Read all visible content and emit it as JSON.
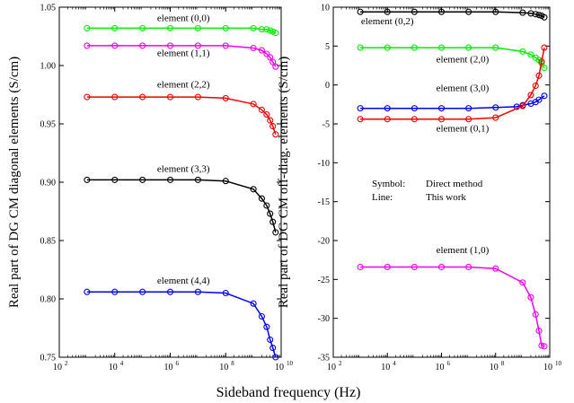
{
  "xlabel": "Sideband frequency (Hz)",
  "chart_data": [
    {
      "type": "line",
      "ylabel": "Real part of DG CM diagonal elements (S/cm)",
      "xlabel": "",
      "xscale": "log",
      "xlim": [
        100,
        10000000000
      ],
      "ylim": [
        0.75,
        1.05
      ],
      "xticks": [
        {
          "v": 100,
          "b": "10",
          "e": "2"
        },
        {
          "v": 10000,
          "b": "10",
          "e": "4"
        },
        {
          "v": 1000000,
          "b": "10",
          "e": "6"
        },
        {
          "v": 100000000,
          "b": "10",
          "e": "8"
        },
        {
          "v": 10000000000,
          "b": "10",
          "e": "10"
        }
      ],
      "yticks": [
        0.75,
        0.8,
        0.85,
        0.9,
        0.95,
        1.0,
        1.05
      ],
      "yticklabels": [
        "0.75",
        "0.80",
        "0.85",
        "0.90",
        "0.95",
        "1.00",
        "1.05"
      ],
      "grid": false,
      "series": [
        {
          "name": "element (0,0)",
          "color": "#00ee00",
          "x": [
            1000,
            10000,
            100000,
            1000000,
            10000000,
            100000000,
            1000000000,
            2000000000,
            3000000000,
            4000000000,
            5000000000,
            6300000000
          ],
          "y": [
            1.032,
            1.032,
            1.032,
            1.032,
            1.032,
            1.032,
            1.032,
            1.031,
            1.031,
            1.03,
            1.029,
            1.028
          ]
        },
        {
          "name": "element (1,1)",
          "color": "#ee00ee",
          "x": [
            1000,
            10000,
            100000,
            1000000,
            10000000,
            100000000,
            1000000000,
            2000000000,
            3000000000,
            4000000000,
            5000000000,
            6300000000
          ],
          "y": [
            1.017,
            1.017,
            1.017,
            1.017,
            1.017,
            1.017,
            1.015,
            1.013,
            1.01,
            1.007,
            1.003,
            0.999
          ]
        },
        {
          "name": "element (2,2)",
          "color": "#ee0000",
          "x": [
            1000,
            10000,
            100000,
            1000000,
            10000000,
            100000000,
            1000000000,
            2000000000,
            3000000000,
            4000000000,
            5000000000,
            6300000000
          ],
          "y": [
            0.973,
            0.973,
            0.973,
            0.973,
            0.973,
            0.972,
            0.967,
            0.962,
            0.958,
            0.953,
            0.948,
            0.941
          ]
        },
        {
          "name": "element (3,3)",
          "color": "#000000",
          "x": [
            1000,
            10000,
            100000,
            1000000,
            10000000,
            100000000,
            1000000000,
            2000000000,
            3000000000,
            4000000000,
            5000000000,
            6300000000
          ],
          "y": [
            0.902,
            0.902,
            0.902,
            0.902,
            0.902,
            0.901,
            0.894,
            0.886,
            0.88,
            0.873,
            0.866,
            0.857
          ]
        },
        {
          "name": "element (4,4)",
          "color": "#0000ee",
          "x": [
            1000,
            10000,
            100000,
            1000000,
            10000000,
            100000000,
            1000000000,
            2000000000,
            3000000000,
            4000000000,
            5000000000,
            6300000000
          ],
          "y": [
            0.806,
            0.806,
            0.806,
            0.806,
            0.806,
            0.805,
            0.796,
            0.785,
            0.776,
            0.765,
            0.758,
            0.75
          ]
        }
      ],
      "annotations": [
        {
          "text": "element (0,0)",
          "x": 3000000,
          "y": 1.038
        },
        {
          "text": "element (1,1)",
          "x": 3000000,
          "y": 1.008
        },
        {
          "text": "element (2,2)",
          "x": 3000000,
          "y": 0.981
        },
        {
          "text": "element (3,3)",
          "x": 3000000,
          "y": 0.909
        },
        {
          "text": "element (4,4)",
          "x": 3000000,
          "y": 0.813
        }
      ]
    },
    {
      "type": "line",
      "ylabel": "Real part of DG CM off-diag. elements (S/cm)",
      "xlabel": "",
      "xscale": "log",
      "xlim": [
        100,
        10000000000
      ],
      "ylim": [
        -35,
        10
      ],
      "xticks": [
        {
          "v": 100,
          "b": "10",
          "e": "2"
        },
        {
          "v": 10000,
          "b": "10",
          "e": "4"
        },
        {
          "v": 1000000,
          "b": "10",
          "e": "6"
        },
        {
          "v": 100000000,
          "b": "10",
          "e": "8"
        },
        {
          "v": 10000000000,
          "b": "10",
          "e": "10"
        }
      ],
      "yticks": [
        -35,
        -30,
        -25,
        -20,
        -15,
        -10,
        -5,
        0,
        5,
        10
      ],
      "yticklabels": [
        "-35",
        "-30",
        "-25",
        "-20",
        "-15",
        "-10",
        "-5",
        "0",
        "5",
        "10"
      ],
      "grid": false,
      "series": [
        {
          "name": "element (0,2)",
          "color": "#000000",
          "x": [
            1000,
            10000,
            100000,
            1000000,
            10000000,
            100000000,
            1000000000,
            2000000000,
            3000000000,
            4000000000,
            5000000000,
            6300000000
          ],
          "y": [
            9.4,
            9.4,
            9.4,
            9.4,
            9.4,
            9.4,
            9.3,
            9.2,
            9.1,
            9.0,
            8.9,
            8.7
          ]
        },
        {
          "name": "element (2,0)",
          "color": "#00ee00",
          "x": [
            1000,
            10000,
            100000,
            1000000,
            10000000,
            100000000,
            1000000000,
            2000000000,
            3000000000,
            4000000000,
            5000000000,
            6300000000
          ],
          "y": [
            4.8,
            4.8,
            4.8,
            4.8,
            4.8,
            4.8,
            4.3,
            3.9,
            3.5,
            3.2,
            2.8,
            2.2
          ]
        },
        {
          "name": "element (3,0)",
          "color": "#0000ee",
          "x": [
            1000,
            10000,
            100000,
            1000000,
            10000000,
            100000000,
            600000000,
            1000000000,
            2000000000,
            3000000000,
            4000000000,
            6300000000
          ],
          "y": [
            -3.0,
            -3.0,
            -3.0,
            -3.0,
            -3.0,
            -2.9,
            -2.8,
            -2.6,
            -2.4,
            -2.2,
            -1.9,
            -1.4
          ]
        },
        {
          "name": "element (0,1)",
          "color": "#ee0000",
          "x": [
            1000,
            10000,
            100000,
            1000000,
            10000000,
            100000000,
            1000000000,
            2000000000,
            3000000000,
            4000000000,
            5000000000,
            6300000000
          ],
          "y": [
            -4.4,
            -4.4,
            -4.4,
            -4.4,
            -4.4,
            -4.2,
            -2.7,
            -1.3,
            -0.1,
            1.2,
            3.0,
            4.8
          ]
        },
        {
          "name": "element (1,0)",
          "color": "#ee00ee",
          "x": [
            1000,
            10000,
            100000,
            1000000,
            10000000,
            100000000,
            1000000000,
            2000000000,
            3000000000,
            4000000000,
            5000000000,
            6300000000
          ],
          "y": [
            -23.4,
            -23.4,
            -23.4,
            -23.4,
            -23.4,
            -23.6,
            -25.4,
            -27.3,
            -29.5,
            -31.6,
            -33.5,
            -33.6
          ]
        }
      ],
      "annotations": [
        {
          "text": "element (0,2)",
          "x": 10000,
          "y": 7.8
        },
        {
          "text": "element (2,0)",
          "x": 6000000,
          "y": 2.9
        },
        {
          "text": "element (3,0)",
          "x": 6000000,
          "y": -0.8
        },
        {
          "text": "element (0,1)",
          "x": 6000000,
          "y": -6.0
        },
        {
          "text": "element (1,0)",
          "x": 6000000,
          "y": -21.6
        }
      ],
      "legend": {
        "position": "center-right",
        "rows": [
          {
            "key": "Symbol:",
            "value": "Direct method"
          },
          {
            "key": "Line:",
            "value": "This work"
          }
        ]
      }
    }
  ]
}
